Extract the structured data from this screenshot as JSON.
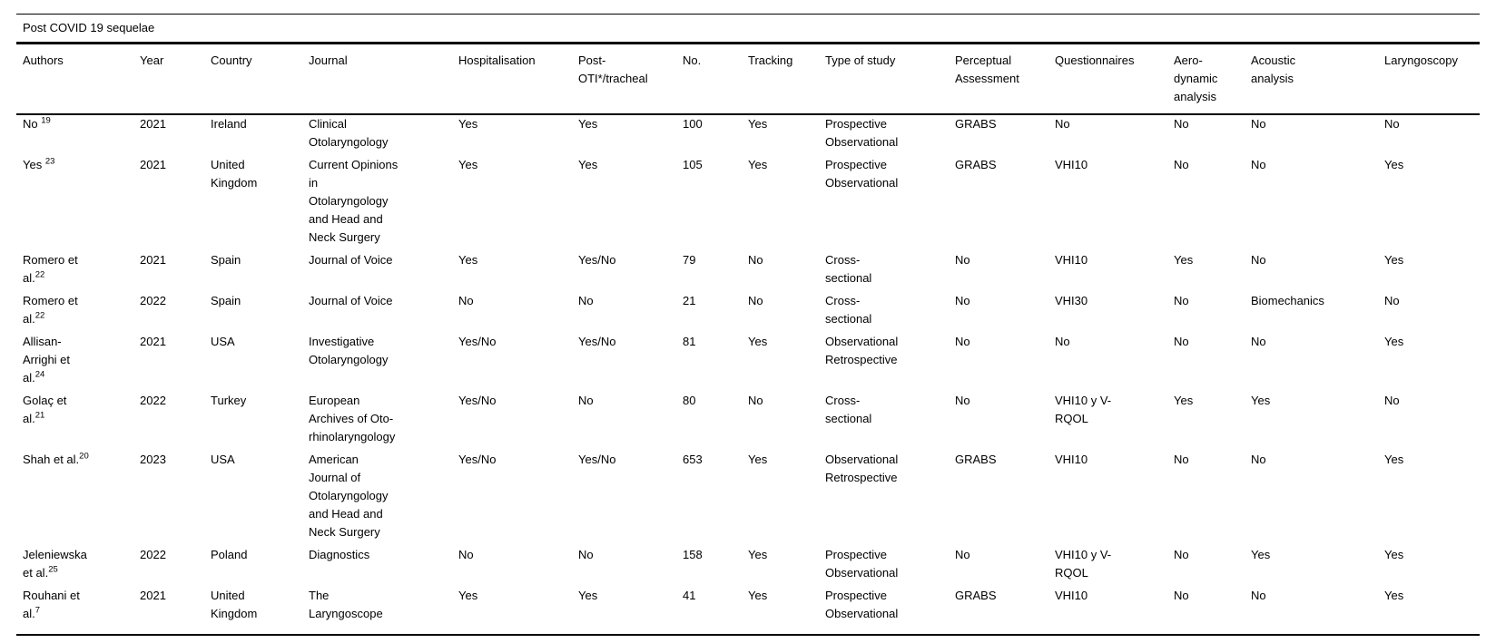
{
  "style": {
    "background": "#ffffff",
    "text_color": "#000000",
    "rule_color": "#000000"
  },
  "table": {
    "caption": "Post COVID 19 sequelae",
    "columns": [
      {
        "id": "authors",
        "label": "Authors"
      },
      {
        "id": "year",
        "label": "Year"
      },
      {
        "id": "country",
        "label": "Country"
      },
      {
        "id": "journal",
        "label": "Journal"
      },
      {
        "id": "hospitalisation",
        "label": "Hospitalisation"
      },
      {
        "id": "post_oti",
        "label": "Post-\nOTI*/tracheal"
      },
      {
        "id": "no",
        "label": "No."
      },
      {
        "id": "tracking",
        "label": "Tracking"
      },
      {
        "id": "type_of_study",
        "label": "Type of study"
      },
      {
        "id": "perceptual_assessment",
        "label": "Perceptual\nAssessment"
      },
      {
        "id": "questionnaires",
        "label": "Questionnaires"
      },
      {
        "id": "aerodynamic_analysis",
        "label": "Aero-\ndynamic\nanalysis"
      },
      {
        "id": "acoustic_analysis",
        "label": "Acoustic\nanalysis"
      },
      {
        "id": "laryngoscopy",
        "label": "Laryngoscopy"
      }
    ],
    "rows": [
      {
        "authors": "No ",
        "authors_sup": "19",
        "year": "2021",
        "country": "Ireland",
        "journal": "Clinical Otolaryngology",
        "hospitalisation": "Yes",
        "post_oti": "Yes",
        "no": "100",
        "tracking": "Yes",
        "type_of_study": "Prospective Observational",
        "perceptual_assessment": "GRABS",
        "questionnaires": "No",
        "aerodynamic_analysis": "No",
        "acoustic_analysis": "No",
        "laryngoscopy": "No"
      },
      {
        "authors": "Yes ",
        "authors_sup": "23",
        "year": "2021",
        "country": "United Kingdom",
        "journal": "Current Opinions in Otolaryngology and Head and Neck Surgery",
        "hospitalisation": "Yes",
        "post_oti": "Yes",
        "no": "105",
        "tracking": "Yes",
        "type_of_study": "Prospective Observational",
        "perceptual_assessment": "GRABS",
        "questionnaires": "VHI10",
        "aerodynamic_analysis": "No",
        "acoustic_analysis": "No",
        "laryngoscopy": "Yes"
      },
      {
        "authors": "Romero et al.",
        "authors_sup": "22",
        "year": "2021",
        "country": "Spain",
        "journal": "Journal of Voice",
        "hospitalisation": "Yes",
        "post_oti": "Yes/No",
        "no": "79",
        "tracking": "No",
        "type_of_study": "Cross-sectional",
        "perceptual_assessment": "No",
        "questionnaires": "VHI10",
        "aerodynamic_analysis": "Yes",
        "acoustic_analysis": "No",
        "laryngoscopy": "Yes"
      },
      {
        "authors": "Romero et al.",
        "authors_sup": "22",
        "year": "2022",
        "country": "Spain",
        "journal": "Journal of Voice",
        "hospitalisation": "No",
        "post_oti": "No",
        "no": "21",
        "tracking": "No",
        "type_of_study": "Cross-sectional",
        "perceptual_assessment": "No",
        "questionnaires": "VHI30",
        "aerodynamic_analysis": "No",
        "acoustic_analysis": "Biomechanics",
        "laryngoscopy": "No"
      },
      {
        "authors": "Allisan-Arrighi et al.",
        "authors_sup": "24",
        "year": "2021",
        "country": "USA",
        "journal": "Investigative Otolaryngology",
        "hospitalisation": "Yes/No",
        "post_oti": "Yes/No",
        "no": "81",
        "tracking": "Yes",
        "type_of_study": "Observational Retrospective",
        "perceptual_assessment": "No",
        "questionnaires": "No",
        "aerodynamic_analysis": "No",
        "acoustic_analysis": "No",
        "laryngoscopy": "Yes"
      },
      {
        "authors": "Golaç et al.",
        "authors_sup": "21",
        "year": "2022",
        "country": "Turkey",
        "journal": "European Archives of Oto-rhinolaryngology",
        "hospitalisation": "Yes/No",
        "post_oti": "No",
        "no": "80",
        "tracking": "No",
        "type_of_study": "Cross-sectional",
        "perceptual_assessment": "No",
        "questionnaires": "VHI10 y V-RQOL",
        "aerodynamic_analysis": "Yes",
        "acoustic_analysis": "Yes",
        "laryngoscopy": "No"
      },
      {
        "authors": "Shah et al.",
        "authors_sup": "20",
        "year": "2023",
        "country": "USA",
        "journal": "American Journal of Otolaryngology and Head and Neck Surgery",
        "hospitalisation": "Yes/No",
        "post_oti": "Yes/No",
        "no": "653",
        "tracking": "Yes",
        "type_of_study": "Observational Retrospective",
        "perceptual_assessment": "GRABS",
        "questionnaires": "VHI10",
        "aerodynamic_analysis": "No",
        "acoustic_analysis": "No",
        "laryngoscopy": "Yes"
      },
      {
        "authors": "Jeleniewska et al.",
        "authors_sup": "25",
        "year": "2022",
        "country": "Poland",
        "journal": "Diagnostics",
        "hospitalisation": "No",
        "post_oti": "No",
        "no": "158",
        "tracking": "Yes",
        "type_of_study": "Prospective Observational",
        "perceptual_assessment": "No",
        "questionnaires": "VHI10 y V-RQOL",
        "aerodynamic_analysis": "No",
        "acoustic_analysis": "Yes",
        "laryngoscopy": "Yes"
      },
      {
        "authors": "Rouhani et al.",
        "authors_sup": "7",
        "year": "2021",
        "country": "United Kingdom",
        "journal": "The Laryngoscope",
        "hospitalisation": "Yes",
        "post_oti": "Yes",
        "no": "41",
        "tracking": "Yes",
        "type_of_study": "Prospective Observational",
        "perceptual_assessment": "GRABS",
        "questionnaires": "VHI10",
        "aerodynamic_analysis": "No",
        "acoustic_analysis": "No",
        "laryngoscopy": "Yes"
      }
    ]
  }
}
